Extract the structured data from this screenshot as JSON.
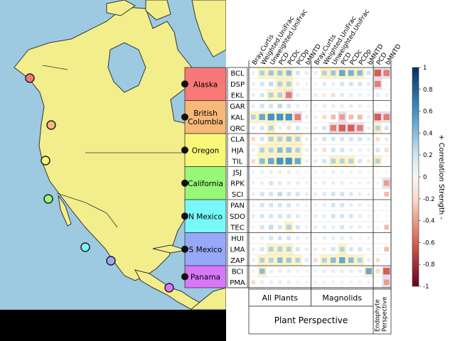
{
  "chart_data": {
    "type": "heatmap",
    "columns": [
      "Bray.Curtis",
      "Weighted.UniFrac",
      "Unweighted.UniFrac",
      "PCD",
      "PCDc",
      "PCDp",
      "bMNTD",
      "Bray.Curtis",
      "Weighted.UniFrac",
      "Unweighted.UniFrac",
      "PCD",
      "PCDc",
      "PCDp",
      "bMNTD",
      "PCD",
      "bMNTD"
    ],
    "column_groups": [
      {
        "label": "All Plants",
        "span": 7
      },
      {
        "label": "Magnolids",
        "span": 7
      },
      {
        "label": "Endophyte Perspective",
        "span": 2
      }
    ],
    "perspective_groups": [
      {
        "label": "Plant Perspective",
        "span": 14
      },
      {
        "label": "",
        "span": 2
      }
    ],
    "regions": [
      {
        "name": "Alaska",
        "color": "#f87878",
        "sites": [
          "BCL",
          "DSP",
          "EKL"
        ]
      },
      {
        "name": "British Columbia",
        "color": "#f8b878",
        "sites": [
          "GAR",
          "KAL",
          "QRC"
        ]
      },
      {
        "name": "Oregon",
        "color": "#f8f878",
        "sites": [
          "CLA",
          "HJA",
          "TIL"
        ]
      },
      {
        "name": "California",
        "color": "#98f878",
        "sites": [
          "JSJ",
          "RPK",
          "SCI"
        ]
      },
      {
        "name": "N Mexico",
        "color": "#78f8f8",
        "sites": [
          "PAN",
          "SDO",
          "TEC"
        ]
      },
      {
        "name": "S Mexico",
        "color": "#98a8f8",
        "sites": [
          "HUI",
          "LMA",
          "ZAP"
        ]
      },
      {
        "name": "Panama",
        "color": "#d878f8",
        "sites": [
          "BCI",
          "PMA"
        ]
      }
    ],
    "values": [
      [
        0.05,
        0.3,
        0.35,
        0.35,
        0.4,
        0.2,
        0.1,
        0.1,
        0.3,
        0.35,
        0.5,
        0.45,
        0.4,
        0.2,
        -0.6,
        -0.5
      ],
      [
        -0.1,
        0.2,
        0.25,
        0.3,
        0.3,
        0.1,
        0.05,
        0.05,
        0.15,
        0.1,
        0.2,
        0.2,
        0.2,
        0.1,
        -0.5,
        0.0
      ],
      [
        0.1,
        0.2,
        0.3,
        0.3,
        -0.5,
        0.1,
        0.0,
        0.1,
        -0.1,
        -0.2,
        0.15,
        0.1,
        0.1,
        0.05,
        0.1,
        -0.1
      ],
      [
        0.1,
        0.2,
        0.2,
        0.25,
        0.2,
        0.1,
        0.05,
        0.05,
        0.1,
        0.1,
        0.1,
        0.1,
        0.1,
        0.05,
        0.0,
        0.0
      ],
      [
        0.3,
        0.5,
        0.6,
        0.6,
        0.6,
        -0.5,
        0.1,
        -0.1,
        -0.2,
        -0.3,
        -0.4,
        -0.3,
        -0.3,
        0.1,
        -0.6,
        -0.5
      ],
      [
        0.1,
        0.2,
        0.3,
        -0.1,
        -0.2,
        0.2,
        0.05,
        0.1,
        0.2,
        -0.5,
        -0.6,
        -0.6,
        -0.5,
        0.1,
        0.3,
        0.2
      ],
      [
        -0.2,
        0.2,
        0.3,
        0.3,
        0.35,
        0.3,
        0.1,
        0.1,
        0.2,
        0.2,
        0.2,
        0.2,
        0.2,
        0.1,
        -0.2,
        0.1
      ],
      [
        0.1,
        0.3,
        0.3,
        0.4,
        0.4,
        0.3,
        0.1,
        0.1,
        -0.2,
        0.2,
        0.2,
        0.1,
        0.1,
        0.05,
        0.2,
        -0.2
      ],
      [
        -0.2,
        0.4,
        0.5,
        0.6,
        0.6,
        0.5,
        0.1,
        0.1,
        0.2,
        0.3,
        0.3,
        0.3,
        0.2,
        -0.1,
        0.3,
        0.0
      ],
      [
        0.05,
        0.1,
        0.1,
        0.1,
        0.1,
        0.05,
        0.0,
        0.05,
        0.05,
        0.1,
        0.05,
        0.05,
        0.05,
        0.0,
        0.0,
        0.0
      ],
      [
        0.05,
        0.1,
        0.2,
        0.15,
        0.1,
        0.1,
        0.05,
        0.05,
        0.1,
        0.1,
        0.1,
        0.05,
        0.05,
        0.05,
        0.0,
        -0.4
      ],
      [
        -0.1,
        0.2,
        0.2,
        0.25,
        0.2,
        0.2,
        0.1,
        0.1,
        0.15,
        0.2,
        0.2,
        0.15,
        0.1,
        0.05,
        0.0,
        -0.3
      ],
      [
        0.05,
        0.2,
        0.2,
        0.2,
        0.2,
        0.1,
        0.05,
        0.05,
        0.1,
        0.2,
        0.2,
        0.1,
        0.1,
        0.05,
        0.0,
        0.0
      ],
      [
        -0.1,
        0.2,
        0.2,
        0.2,
        0.2,
        0.15,
        0.05,
        -0.1,
        0.1,
        0.2,
        0.2,
        0.2,
        0.1,
        0.05,
        0.0,
        0.0
      ],
      [
        0.05,
        0.2,
        0.25,
        0.2,
        0.3,
        0.2,
        0.05,
        0.1,
        0.1,
        0.1,
        0.2,
        0.1,
        0.1,
        0.05,
        0.0,
        -0.3
      ],
      [
        0.05,
        0.1,
        0.2,
        0.2,
        0.2,
        0.1,
        0.05,
        0.05,
        0.1,
        0.1,
        0.1,
        0.1,
        0.05,
        0.05,
        0.0,
        0.0
      ],
      [
        -0.1,
        0.2,
        0.3,
        0.3,
        0.3,
        0.2,
        0.1,
        0.1,
        -0.1,
        0.2,
        0.3,
        0.2,
        0.2,
        0.1,
        0.0,
        -0.3
      ],
      [
        0.1,
        0.3,
        0.3,
        0.4,
        0.35,
        0.3,
        0.15,
        -0.2,
        0.3,
        0.4,
        0.5,
        0.4,
        0.3,
        0.1,
        -0.2,
        0.0
      ],
      [
        0.05,
        0.4,
        0.1,
        0.1,
        0.1,
        0.05,
        0.05,
        0.05,
        0.1,
        0.1,
        0.1,
        0.1,
        0.1,
        0.5,
        -0.2,
        -0.6
      ],
      [
        -0.2,
        0.1,
        0.1,
        0.1,
        0.1,
        0.05,
        0.05,
        0.05,
        0.05,
        0.05,
        0.05,
        0.05,
        0.05,
        0.05,
        0.0,
        -0.4
      ]
    ],
    "colorbar": {
      "label": "+ Correlation Strength -",
      "ticks": [
        "1",
        "0.8",
        "0.6",
        "0.4",
        "0.2",
        "0",
        "-0.2",
        "-0.4",
        "-0.6",
        "-0.8",
        "-1"
      ],
      "range": [
        -1,
        1
      ]
    },
    "map": {
      "marker_colors": [
        "#f87878",
        "#f8b878",
        "#f8f878",
        "#98f878",
        "#78f8f8",
        "#98a8f8",
        "#d878f8"
      ]
    }
  }
}
